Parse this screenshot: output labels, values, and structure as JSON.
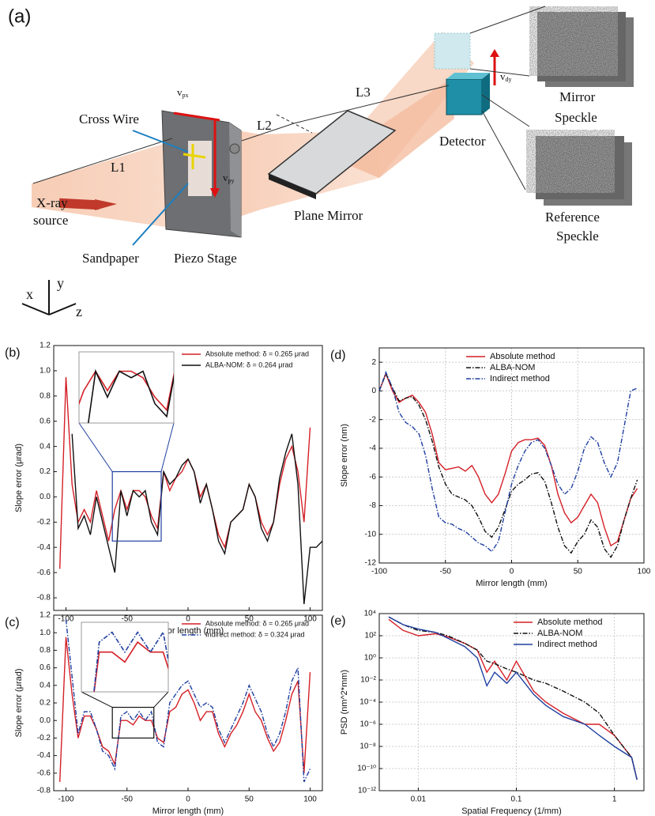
{
  "diagram": {
    "label": "(a)",
    "cross_wire": "Cross Wire",
    "l1": "L1",
    "l2": "L2",
    "l3": "L3",
    "xray_source": [
      "X-ray",
      "source"
    ],
    "sandpaper": "Sandpaper",
    "piezo_stage": "Piezo Stage",
    "plane_mirror": "Plane Mirror",
    "detector": "Detector",
    "mirror_speckle": [
      "Mirror",
      "Speckle"
    ],
    "reference_speckle": [
      "Reference",
      "Speckle"
    ],
    "velocities": [
      {
        "symbol": "v",
        "subscript": "px"
      },
      {
        "symbol": "v",
        "subscript": "py"
      },
      {
        "symbol": "v",
        "subscript": "dy"
      }
    ],
    "axes": [
      "x",
      "y",
      "z"
    ]
  },
  "chart_data": [
    {
      "type": "line",
      "panel_label": "(b)",
      "x_label": "Mirror length (mm)",
      "y_label": "Slope error (μrad)",
      "x": [
        -105,
        -100,
        -95,
        -90,
        -85,
        -80,
        -75,
        -70,
        -65,
        -60,
        -55,
        -50,
        -45,
        -40,
        -35,
        -30,
        -25,
        -20,
        -15,
        -10,
        -5,
        0,
        5,
        10,
        15,
        20,
        25,
        30,
        35,
        40,
        45,
        50,
        55,
        60,
        65,
        70,
        75,
        80,
        85,
        90,
        95,
        100,
        105,
        110
      ],
      "series": [
        {
          "name": "Absolute method: δ = 0.265 μrad",
          "color": "#d42027",
          "style": "solid",
          "values": [
            -0.57,
            0.95,
            0.1,
            -0.2,
            -0.1,
            -0.2,
            0.05,
            -0.15,
            -0.35,
            -0.1,
            0.05,
            -0.1,
            0.05,
            0.05,
            0,
            -0.15,
            -0.25,
            0.2,
            0.05,
            0.15,
            0.2,
            0.3,
            0.2,
            0,
            0.1,
            -0.1,
            -0.3,
            -0.4,
            -0.2,
            -0.15,
            -0.1,
            0.1,
            0,
            -0.2,
            -0.3,
            -0.2,
            0.1,
            0.3,
            0.4,
            0.2,
            -0.2,
            0.55,
            null,
            null
          ]
        },
        {
          "name": "ALBA-NOM: δ = 0.264 μrad",
          "color": "#111111",
          "style": "solid",
          "values": [
            null,
            null,
            0.5,
            -0.25,
            -0.15,
            -0.3,
            0,
            -0.2,
            -0.4,
            -0.6,
            0.05,
            -0.15,
            0.05,
            0,
            0.05,
            -0.2,
            -0.3,
            0.2,
            0.1,
            0.15,
            0.25,
            0.3,
            0.2,
            -0.05,
            0.1,
            -0.1,
            -0.35,
            -0.45,
            -0.2,
            -0.15,
            -0.1,
            0.1,
            0,
            -0.25,
            -0.35,
            -0.2,
            0.15,
            0.35,
            0.5,
            0.1,
            -0.85,
            -0.4,
            -0.4,
            -0.35
          ]
        }
      ],
      "xlim": [
        -110,
        110
      ],
      "xticks": [
        -100,
        -50,
        0,
        50,
        100
      ],
      "ylim": [
        -0.9,
        1.2
      ],
      "yticks": [
        -0.8,
        -0.6,
        -0.4,
        -0.2,
        {
          "value": 0,
          "label": "0.0"
        },
        0.2,
        0.4,
        0.6,
        0.8,
        {
          "value": 1,
          "label": "1.0"
        },
        1.2
      ],
      "zoom_xlim": [
        -62,
        -22
      ],
      "zoom_ylim": [
        -0.35,
        0.2
      ],
      "grid": false,
      "legend": "upper right"
    },
    {
      "type": "line",
      "panel_label": "(c)",
      "x_label": "Mirror length (mm)",
      "y_label": "Slope error (μrad)",
      "x": [
        -105,
        -100,
        -95,
        -90,
        -85,
        -80,
        -75,
        -70,
        -65,
        -60,
        -55,
        -50,
        -45,
        -40,
        -35,
        -30,
        -25,
        -20,
        -15,
        -10,
        -5,
        0,
        5,
        10,
        15,
        20,
        25,
        30,
        35,
        40,
        45,
        50,
        55,
        60,
        65,
        70,
        75,
        80,
        85,
        90,
        95,
        100,
        105
      ],
      "series": [
        {
          "name": "Absolute method: δ = 0.265 μrad",
          "color": "#d42027",
          "style": "solid",
          "values": [
            -0.7,
            0.95,
            0.3,
            -0.2,
            0.05,
            0.05,
            -0.1,
            -0.3,
            -0.35,
            -0.5,
            0,
            0,
            -0.05,
            0.05,
            0,
            0,
            -0.2,
            -0.25,
            0.1,
            0.15,
            0.3,
            0.35,
            0.2,
            0,
            0.1,
            0.1,
            -0.15,
            -0.3,
            -0.15,
            -0.05,
            0.1,
            0.3,
            0.1,
            0,
            -0.2,
            -0.35,
            -0.25,
            0,
            0.3,
            0.45,
            -0.6,
            0.55,
            null
          ]
        },
        {
          "name": "Indirect method: δ = 0.324 μrad",
          "color": "#1f3fa0",
          "style": "dashdot",
          "values": [
            null,
            1.15,
            0.5,
            -0.15,
            0.1,
            0.1,
            -0.1,
            -0.35,
            -0.4,
            -0.55,
            0.05,
            0.1,
            0,
            0.1,
            0,
            0.1,
            -0.25,
            -0.3,
            0.2,
            0.3,
            0.4,
            0.45,
            0.3,
            0.15,
            0.2,
            0.15,
            -0.1,
            -0.25,
            -0.1,
            0.05,
            0.2,
            0.4,
            0.25,
            0.1,
            -0.15,
            -0.3,
            -0.15,
            0.1,
            0.45,
            0.6,
            -0.7,
            -0.55,
            null
          ]
        }
      ],
      "xlim": [
        -110,
        110
      ],
      "xticks": [
        -100,
        -50,
        0,
        50,
        100
      ],
      "ylim": [
        -0.8,
        1.2
      ],
      "yticks": [
        -0.8,
        -0.6,
        -0.4,
        -0.2,
        {
          "value": 0,
          "label": "0.0"
        },
        0.2,
        0.4,
        0.6,
        0.8,
        {
          "value": 1,
          "label": "1.0"
        },
        1.2
      ],
      "zoom_xlim": [
        -62,
        -28
      ],
      "zoom_ylim": [
        -0.2,
        0.15
      ],
      "grid": false,
      "legend": "upper right"
    },
    {
      "type": "line",
      "panel_label": "(d)",
      "x_label": "Mirror length (mm)",
      "y_label": "Slope error (nm)",
      "x": [
        -100,
        -95,
        -90,
        -85,
        -80,
        -75,
        -70,
        -65,
        -60,
        -55,
        -50,
        -45,
        -40,
        -35,
        -30,
        -25,
        -20,
        -15,
        -10,
        -5,
        0,
        5,
        10,
        15,
        20,
        25,
        30,
        35,
        40,
        45,
        50,
        55,
        60,
        65,
        70,
        75,
        80,
        85,
        90,
        95
      ],
      "series": [
        {
          "name": "Absolute method",
          "color": "#d42027",
          "style": "solid",
          "values": [
            0,
            1.2,
            0,
            -0.8,
            -0.5,
            -0.3,
            -0.8,
            -1.5,
            -3,
            -5,
            -5.5,
            -5.4,
            -5.3,
            -5.6,
            -5.2,
            -6,
            -7.2,
            -7.8,
            -7.2,
            -5.8,
            -4.2,
            -3.6,
            -3.4,
            -3.4,
            -3.3,
            -3.8,
            -5.2,
            -7.2,
            -8.5,
            -9.2,
            -8.8,
            -8,
            -7.2,
            -7.8,
            -9.5,
            -10.8,
            -10.5,
            -9,
            -7.5,
            -6.8
          ]
        },
        {
          "name": "ALBA-NOM",
          "color": "#111111",
          "style": "dashdot",
          "values": [
            0,
            1.2,
            0.2,
            -0.7,
            -0.5,
            -0.4,
            -1,
            -2,
            -3.5,
            -5.3,
            -6.5,
            -7.2,
            -7.4,
            -7.6,
            -8,
            -8.8,
            -9.8,
            -10.2,
            -9.5,
            -8.3,
            -7,
            -6.5,
            -6.2,
            -5.8,
            -5.7,
            -6.3,
            -7.8,
            -9.5,
            -10.8,
            -11.3,
            -10.5,
            -10,
            -9,
            -9.5,
            -11,
            -11.6,
            -10.8,
            -9,
            -7.5,
            -6.2
          ]
        },
        {
          "name": "Indirect method",
          "color": "#1f3fa0",
          "style": "dashdot",
          "values": [
            0,
            1.3,
            0.2,
            -1.5,
            -2.2,
            -2.5,
            -3,
            -4.5,
            -6.8,
            -8.8,
            -9.2,
            -9.3,
            -9.6,
            -9.8,
            -10.2,
            -10.6,
            -10.8,
            -11.2,
            -10.5,
            -8.5,
            -6.5,
            -5.2,
            -4.2,
            -3.6,
            -3.4,
            -4,
            -5.2,
            -6.5,
            -7.2,
            -6.8,
            -5.6,
            -4,
            -3.2,
            -3.6,
            -5,
            -6,
            -5,
            -2.5,
            0,
            0.2
          ]
        }
      ],
      "xlim": [
        -100,
        100
      ],
      "xticks": [
        -100,
        -50,
        0,
        50,
        100
      ],
      "ylim": [
        -12,
        3
      ],
      "yticks": [
        -12,
        -10,
        -8,
        -6,
        -4,
        -2,
        0,
        2
      ],
      "grid": true,
      "legend": "upper center"
    },
    {
      "type": "line",
      "panel_label": "(e)",
      "x_label": "Spatial Frequency (1/mm)",
      "y_label": "PSD (nm^2*mm)",
      "log_x": true,
      "log_y": true,
      "x": [
        0.005,
        0.007,
        0.01,
        0.015,
        0.02,
        0.03,
        0.04,
        0.05,
        0.06,
        0.08,
        0.1,
        0.15,
        0.2,
        0.3,
        0.5,
        0.7,
        1,
        1.5,
        1.7
      ],
      "series": [
        {
          "name": "Absolute method",
          "color": "#d42027",
          "style": "solid",
          "values": [
            3000,
            300,
            100,
            150,
            80,
            20,
            5,
            0.05,
            0.5,
            0.01,
            0.5,
            0.001,
            0.0001,
            1e-05,
            1e-06,
            1e-06,
            1e-07,
            1e-09,
            1e-11
          ]
        },
        {
          "name": "ALBA-NOM",
          "color": "#111111",
          "style": "dashdot",
          "values": [
            5000,
            1000,
            300,
            200,
            100,
            20,
            5,
            0.5,
            0.3,
            0.1,
            0.05,
            0.01,
            0.005,
            0.001,
            0.0001,
            1e-05,
            1e-07,
            1e-09,
            1e-11
          ]
        },
        {
          "name": "Indirect method",
          "color": "#1f3fa0",
          "style": "solid",
          "values": [
            5000,
            1000,
            400,
            200,
            60,
            10,
            1,
            0.003,
            0.05,
            0.005,
            0.05,
            0.0005,
            5e-05,
            5e-06,
            1e-06,
            1e-07,
            1e-08,
            1e-09,
            1e-11
          ]
        }
      ],
      "xlim": [
        0.004,
        2
      ],
      "xticks": [
        0.01,
        0.1,
        1
      ],
      "ylim": [
        1e-12,
        10000
      ],
      "yticks": [
        {
          "value": 1e-12,
          "label": "10⁻¹²"
        },
        {
          "value": 1e-10,
          "label": "10⁻¹⁰"
        },
        {
          "value": 1e-08,
          "label": "10⁻⁸"
        },
        {
          "value": 1e-06,
          "label": "10⁻⁶"
        },
        {
          "value": 0.0001,
          "label": "10⁻⁴"
        },
        {
          "value": 0.01,
          "label": "10⁻²"
        },
        {
          "value": 1,
          "label": "10⁰"
        },
        {
          "value": 100,
          "label": "10²"
        },
        {
          "value": 10000,
          "label": "10⁴"
        }
      ],
      "grid": true,
      "legend": "upper right"
    }
  ]
}
